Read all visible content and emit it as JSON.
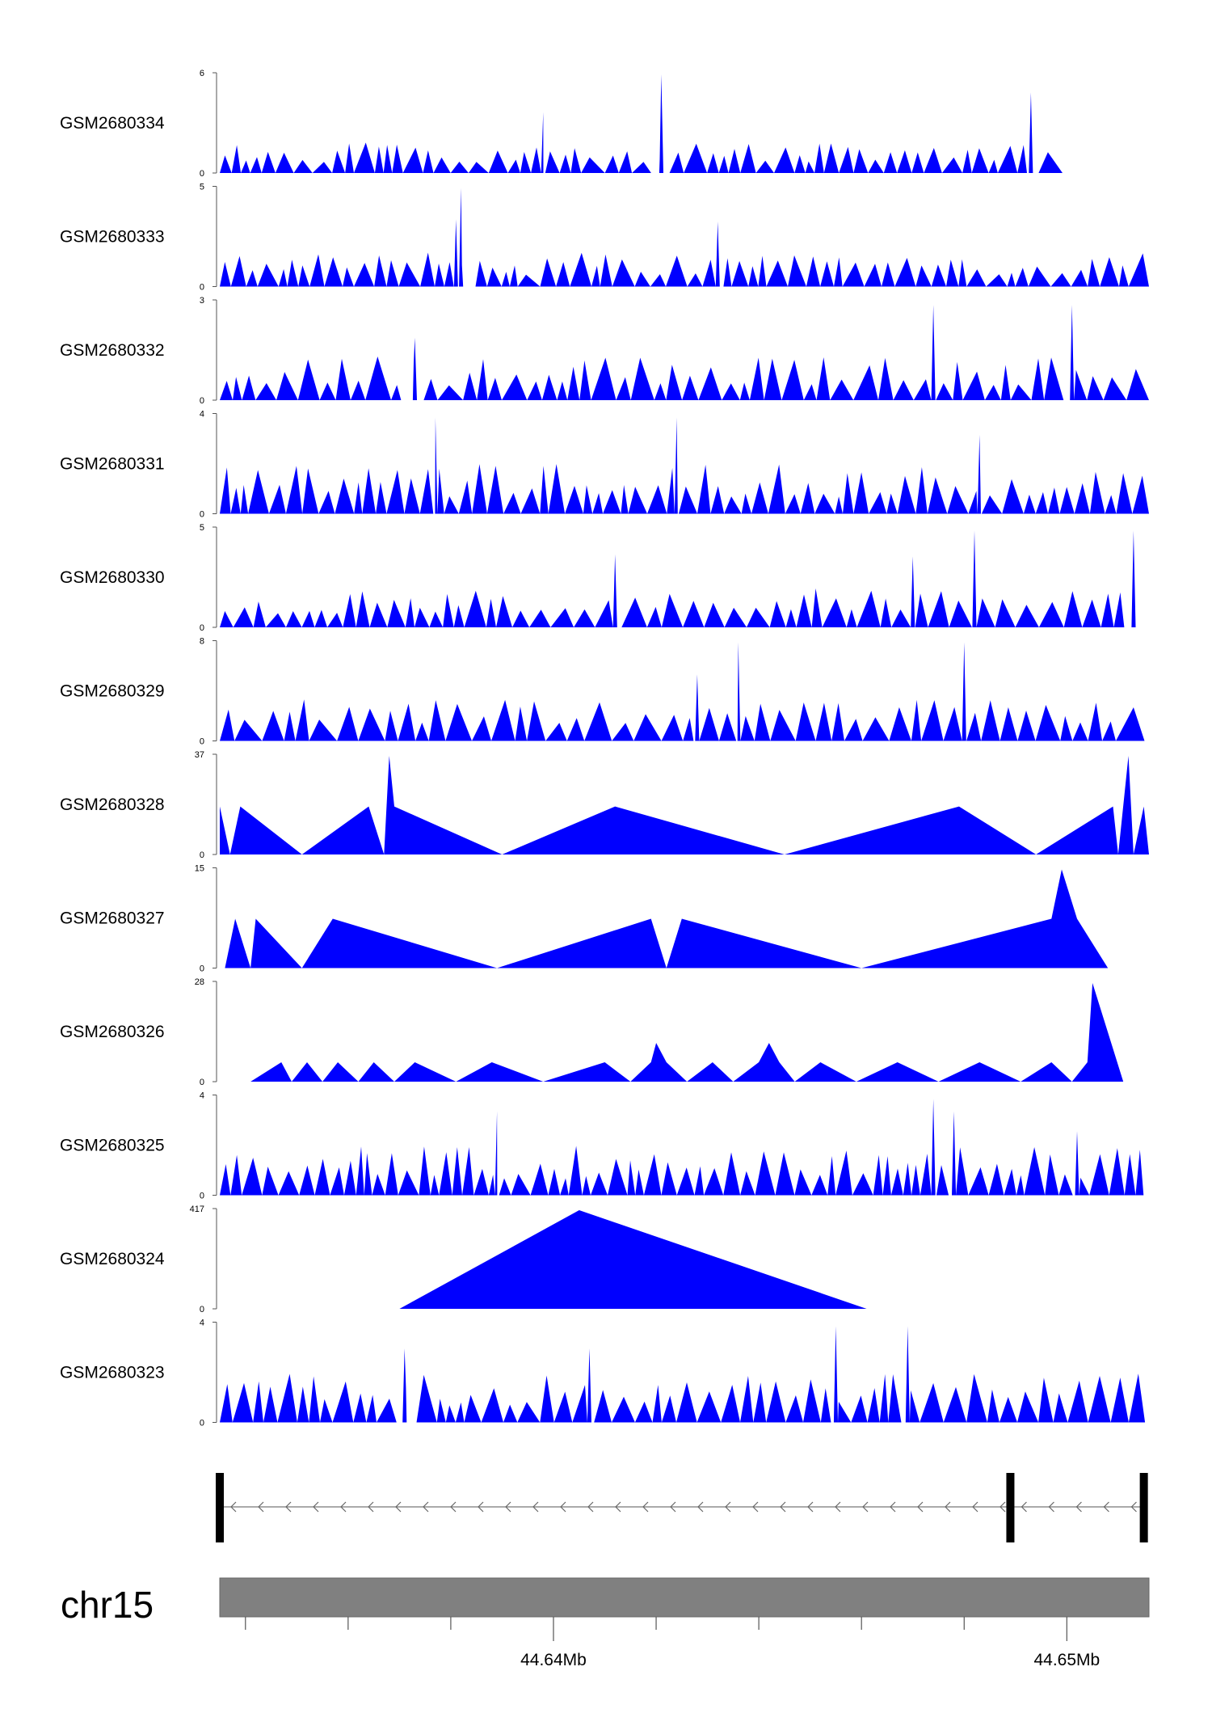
{
  "chart_data": {
    "type": "area",
    "chromosome": "chr15",
    "x_range_mb": [
      44.6335,
      44.6516
    ],
    "x_ticks_mb": [
      44.634,
      44.636,
      44.638,
      44.64,
      44.642,
      44.644,
      44.646,
      44.648,
      44.65
    ],
    "x_tick_labels": [
      {
        "value": 44.64,
        "label": "44.64Mb"
      },
      {
        "value": 44.65,
        "label": "44.65Mb"
      }
    ],
    "fill_color": "#0000FF",
    "tracks": [
      {
        "label": "GSM2680334",
        "ymax": 6,
        "ymax_label": "6",
        "ymin_label": "0",
        "seed": 11,
        "base": 1.4,
        "n": 58,
        "spikes": [
          [
            44.6421,
            6.0
          ],
          [
            44.6493,
            4.9
          ],
          [
            44.6398,
            3.7
          ]
        ]
      },
      {
        "label": "GSM2680333",
        "ymax": 5,
        "ymax_label": "5",
        "ymin_label": "0",
        "seed": 23,
        "base": 1.3,
        "n": 62,
        "spikes": [
          [
            44.6382,
            5.0
          ],
          [
            44.6381,
            3.4
          ],
          [
            44.6432,
            3.3
          ]
        ]
      },
      {
        "label": "GSM2680332",
        "ymax": 3,
        "ymax_label": "3",
        "ymin_label": "0",
        "seed": 37,
        "base": 1.0,
        "n": 54,
        "spikes": [
          [
            44.6474,
            2.9
          ],
          [
            44.6501,
            2.9
          ],
          [
            44.6373,
            1.9
          ]
        ]
      },
      {
        "label": "GSM2680331",
        "ymax": 4,
        "ymax_label": "4",
        "ymin_label": "0",
        "seed": 41,
        "base": 1.5,
        "n": 64,
        "spikes": [
          [
            44.6377,
            3.9
          ],
          [
            44.6424,
            3.9
          ],
          [
            44.6483,
            3.2
          ]
        ]
      },
      {
        "label": "GSM2680330",
        "ymax": 5,
        "ymax_label": "5",
        "ymin_label": "0",
        "seed": 53,
        "base": 1.5,
        "n": 52,
        "spikes": [
          [
            44.6482,
            4.9
          ],
          [
            44.6513,
            4.9
          ],
          [
            44.6412,
            3.7
          ],
          [
            44.647,
            3.6
          ]
        ]
      },
      {
        "label": "GSM2680329",
        "ymax": 8,
        "ymax_label": "8",
        "ymin_label": "0",
        "seed": 61,
        "base": 2.6,
        "n": 48,
        "spikes": [
          [
            44.6436,
            8.0
          ],
          [
            44.648,
            8.0
          ],
          [
            44.6428,
            5.4
          ]
        ]
      },
      {
        "label": "GSM2680328",
        "ymax": 37,
        "ymax_label": "37",
        "ymin_label": "0",
        "points": [
          [
            44.6335,
            18
          ],
          [
            44.6337,
            0
          ],
          [
            44.6339,
            18
          ],
          [
            44.6351,
            0
          ],
          [
            44.6364,
            18
          ],
          [
            44.6367,
            0
          ],
          [
            44.6368,
            37
          ],
          [
            44.6369,
            18
          ],
          [
            44.639,
            0
          ],
          [
            44.6412,
            18
          ],
          [
            44.6445,
            0
          ],
          [
            44.6479,
            18
          ],
          [
            44.6494,
            0
          ],
          [
            44.6509,
            18
          ],
          [
            44.651,
            0
          ],
          [
            44.6512,
            37
          ],
          [
            44.6513,
            0
          ],
          [
            44.6515,
            18
          ],
          [
            44.6516,
            0
          ]
        ]
      },
      {
        "label": "GSM2680327",
        "ymax": 15,
        "ymax_label": "15",
        "ymin_label": "0",
        "points": [
          [
            44.6336,
            0
          ],
          [
            44.6338,
            7.5
          ],
          [
            44.6341,
            0
          ],
          [
            44.6342,
            7.5
          ],
          [
            44.6351,
            0
          ],
          [
            44.6357,
            7.5
          ],
          [
            44.6389,
            0
          ],
          [
            44.6419,
            7.5
          ],
          [
            44.6422,
            0
          ],
          [
            44.6425,
            7.5
          ],
          [
            44.646,
            0
          ],
          [
            44.6497,
            7.5
          ],
          [
            44.6499,
            15
          ],
          [
            44.6502,
            7.5
          ],
          [
            44.6508,
            0
          ]
        ]
      },
      {
        "label": "GSM2680326",
        "ymax": 28,
        "ymax_label": "28",
        "ymin_label": "0",
        "points": [
          [
            44.6341,
            0
          ],
          [
            44.6347,
            5.5
          ],
          [
            44.6349,
            0
          ],
          [
            44.6352,
            5.5
          ],
          [
            44.6355,
            0
          ],
          [
            44.6358,
            5.5
          ],
          [
            44.6362,
            0
          ],
          [
            44.6365,
            5.5
          ],
          [
            44.6369,
            0
          ],
          [
            44.6373,
            5.5
          ],
          [
            44.6381,
            0
          ],
          [
            44.6388,
            5.5
          ],
          [
            44.6398,
            0
          ],
          [
            44.641,
            5.5
          ],
          [
            44.6415,
            0
          ],
          [
            44.6419,
            5.5
          ],
          [
            44.642,
            11
          ],
          [
            44.6422,
            5.5
          ],
          [
            44.6426,
            0
          ],
          [
            44.6431,
            5.5
          ],
          [
            44.6435,
            0
          ],
          [
            44.644,
            5.5
          ],
          [
            44.6442,
            11
          ],
          [
            44.6444,
            5.5
          ],
          [
            44.6447,
            0
          ],
          [
            44.6452,
            5.5
          ],
          [
            44.6459,
            0
          ],
          [
            44.6467,
            5.5
          ],
          [
            44.6475,
            0
          ],
          [
            44.6483,
            5.5
          ],
          [
            44.6491,
            0
          ],
          [
            44.6497,
            5.5
          ],
          [
            44.6501,
            0
          ],
          [
            44.6504,
            5.5
          ],
          [
            44.6505,
            28
          ],
          [
            44.6511,
            0
          ]
        ]
      },
      {
        "label": "GSM2680325",
        "ymax": 4,
        "ymax_label": "4",
        "ymin_label": "0",
        "seed": 71,
        "base": 1.5,
        "n": 66,
        "spikes": [
          [
            44.6474,
            3.9
          ],
          [
            44.6478,
            3.4
          ],
          [
            44.6389,
            3.4
          ],
          [
            44.6502,
            2.6
          ]
        ]
      },
      {
        "label": "GSM2680324",
        "ymax": 417,
        "ymax_label": "417",
        "ymin_label": "0",
        "points": [
          [
            44.637,
            0
          ],
          [
            44.6405,
            417
          ],
          [
            44.6461,
            0
          ]
        ]
      },
      {
        "label": "GSM2680323",
        "ymax": 4,
        "ymax_label": "4",
        "ymin_label": "0",
        "seed": 83,
        "base": 1.5,
        "n": 56,
        "spikes": [
          [
            44.6455,
            3.9
          ],
          [
            44.6469,
            3.9
          ],
          [
            44.6371,
            3.0
          ],
          [
            44.6407,
            3.0
          ]
        ]
      }
    ],
    "gene_model": {
      "strand": "minus",
      "exons_mb": [
        44.6335,
        44.6489,
        44.6515
      ]
    },
    "title": "",
    "xlabel": "",
    "ylabel": "",
    "grid": false,
    "legend": "none"
  }
}
